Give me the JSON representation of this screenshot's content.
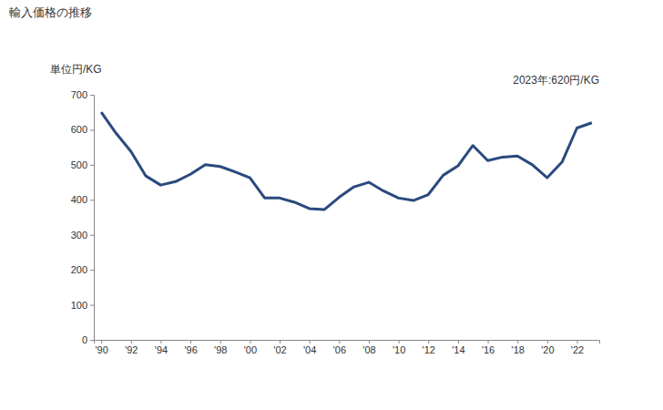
{
  "chart_data": {
    "type": "line",
    "title": "輸入価格の推移",
    "y_label": "単位円/KG",
    "annotation": "2023年:620円/KG",
    "x": [
      1990,
      1991,
      1992,
      1993,
      1994,
      1995,
      1996,
      1997,
      1998,
      1999,
      2000,
      2001,
      2002,
      2003,
      2004,
      2005,
      2006,
      2007,
      2008,
      2009,
      2010,
      2011,
      2012,
      2013,
      2014,
      2015,
      2016,
      2017,
      2018,
      2019,
      2020,
      2021,
      2022,
      2023
    ],
    "values": [
      650,
      590,
      538,
      468,
      442,
      452,
      473,
      500,
      495,
      480,
      463,
      405,
      405,
      393,
      375,
      372,
      407,
      437,
      450,
      425,
      405,
      398,
      415,
      470,
      497,
      555,
      512,
      522,
      525,
      500,
      463,
      508,
      605,
      620
    ],
    "color": "#2b4a7e",
    "xlim": [
      1989.5,
      2023.5
    ],
    "xticks": [
      {
        "value": 1990,
        "label": "'90"
      },
      {
        "value": 1992,
        "label": "'92"
      },
      {
        "value": 1994,
        "label": "'94"
      },
      {
        "value": 1996,
        "label": "'96"
      },
      {
        "value": 1998,
        "label": "'98"
      },
      {
        "value": 2000,
        "label": "'00"
      },
      {
        "value": 2002,
        "label": "'02"
      },
      {
        "value": 2004,
        "label": "'04"
      },
      {
        "value": 2006,
        "label": "'06"
      },
      {
        "value": 2008,
        "label": "'08"
      },
      {
        "value": 2010,
        "label": "'10"
      },
      {
        "value": 2012,
        "label": "'12"
      },
      {
        "value": 2014,
        "label": "'14"
      },
      {
        "value": 2016,
        "label": "'16"
      },
      {
        "value": 2018,
        "label": "'18"
      },
      {
        "value": 2020,
        "label": "'20"
      },
      {
        "value": 2022,
        "label": "'22"
      }
    ],
    "ylim": [
      0,
      700
    ],
    "yticks": [
      0,
      100,
      200,
      300,
      400,
      500,
      600,
      700
    ],
    "grid": false
  }
}
